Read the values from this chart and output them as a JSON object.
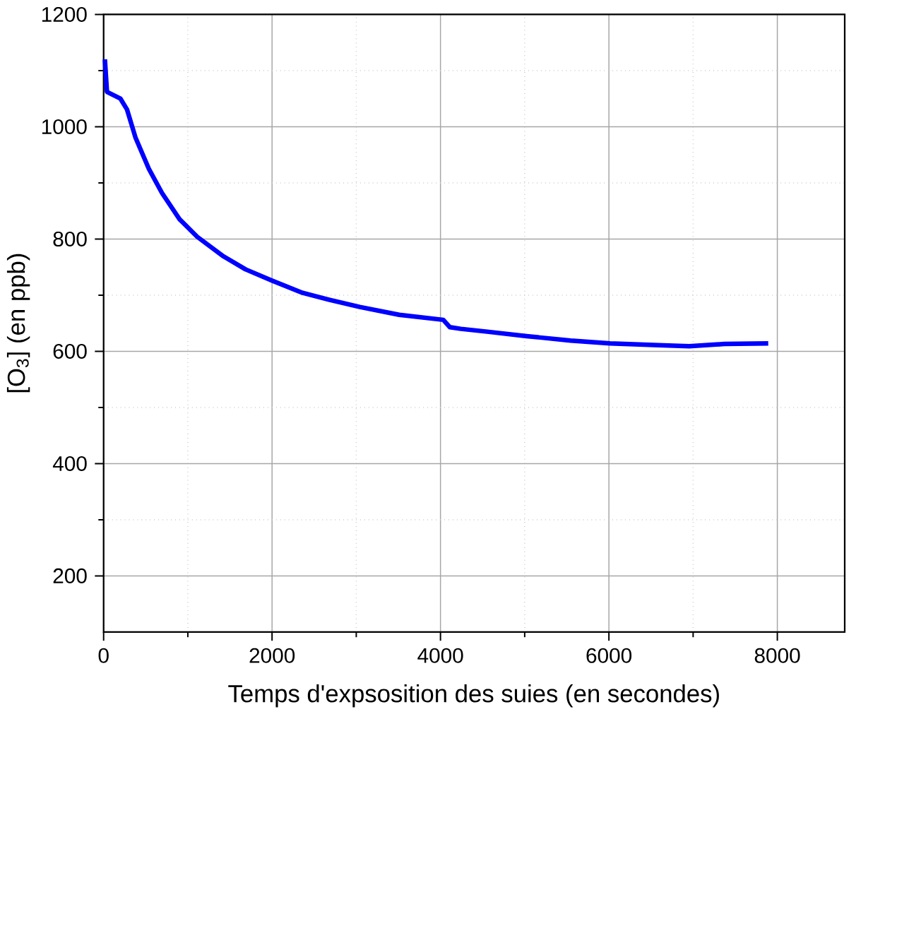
{
  "chart_data": {
    "type": "line",
    "xlabel": "Temps d'expsosition des suies (en secondes)",
    "ylabel": "[O$_{3}$] (en ppb)",
    "xlim": [
      0,
      8800
    ],
    "ylim": [
      100,
      1200
    ],
    "xticks": [
      0,
      2000,
      4000,
      6000,
      8000
    ],
    "yticks": [
      200,
      400,
      600,
      800,
      1000,
      1200
    ],
    "grid": true,
    "series": [
      {
        "color": "#0000ff",
        "x": [
          15,
          40,
          200,
          277,
          380,
          537,
          693,
          903,
          1111,
          1424,
          1685,
          1998,
          2363,
          2676,
          3041,
          3510,
          4033,
          4111,
          4241,
          4554,
          5023,
          5545,
          6014,
          6588,
          6953,
          7371,
          7892
        ],
        "values": [
          1120,
          1062,
          1050,
          1031,
          980,
          925,
          882,
          835,
          804,
          769,
          746,
          726,
          704,
          692,
          679,
          665,
          656,
          643,
          640,
          635,
          627,
          619,
          614,
          611,
          609,
          613,
          614
        ]
      }
    ]
  }
}
